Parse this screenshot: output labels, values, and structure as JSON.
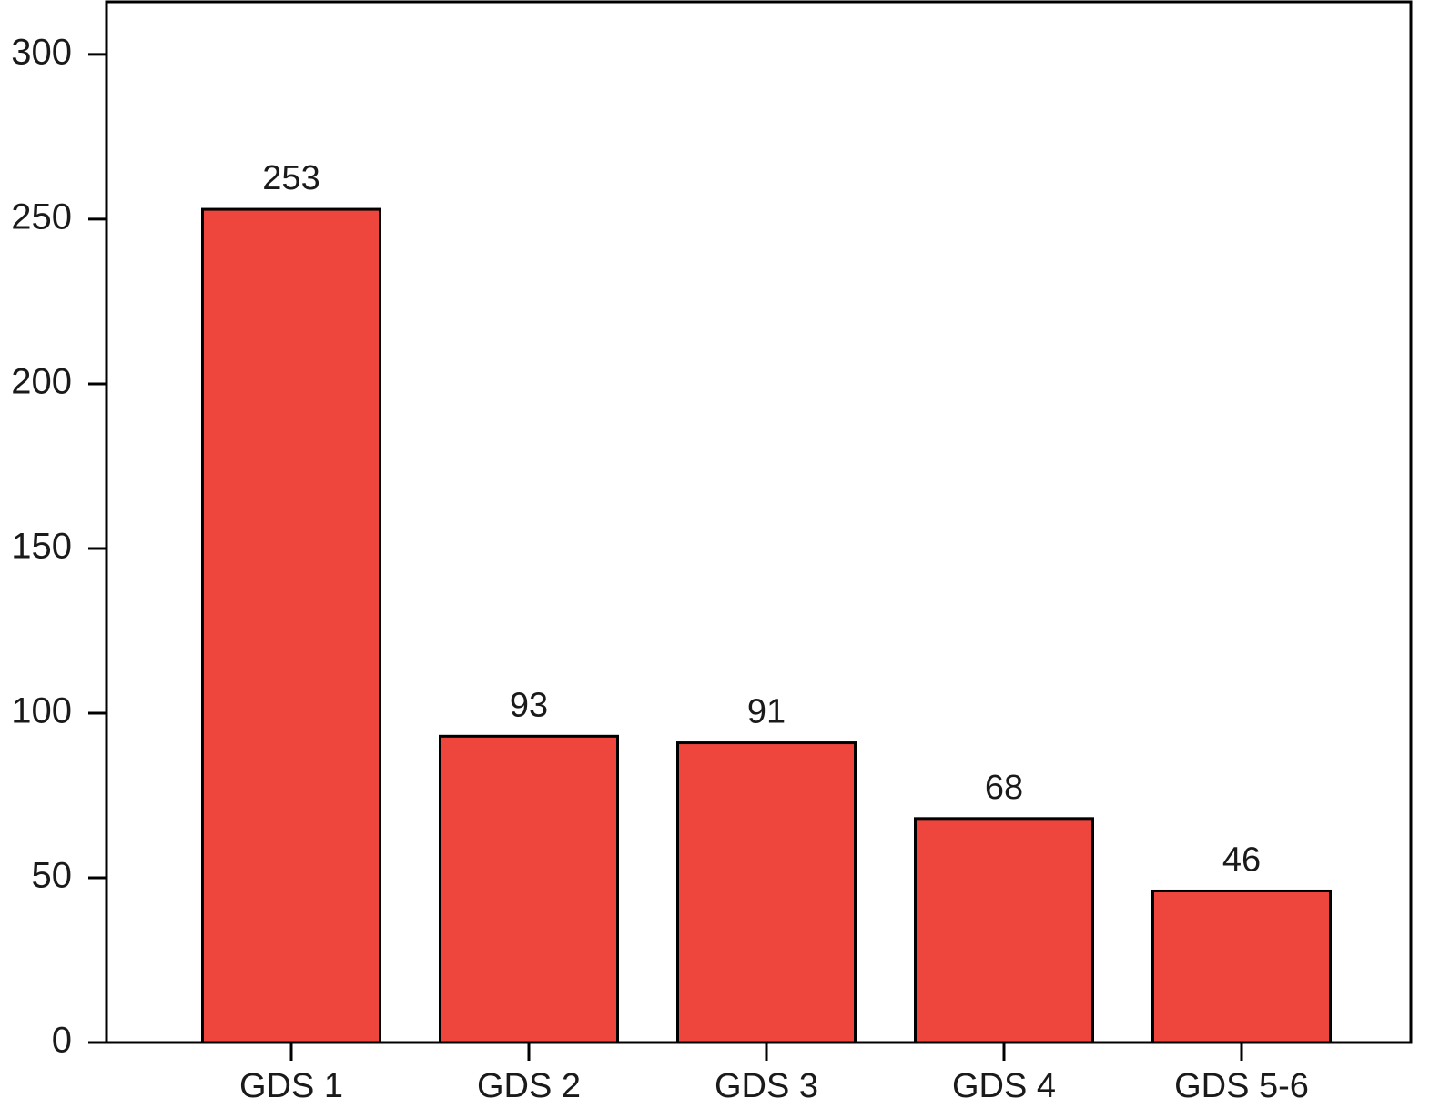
{
  "chart_data": {
    "type": "bar",
    "categories": [
      "GDS 1",
      "GDS 2",
      "GDS 3",
      "GDS 4",
      "GDS 5-6"
    ],
    "values": [
      253,
      93,
      91,
      68,
      46
    ],
    "color": "#ee453c",
    "ylim": [
      0,
      316
    ],
    "yticks": [
      0,
      50,
      100,
      150,
      200,
      250,
      300
    ],
    "grid": false
  }
}
